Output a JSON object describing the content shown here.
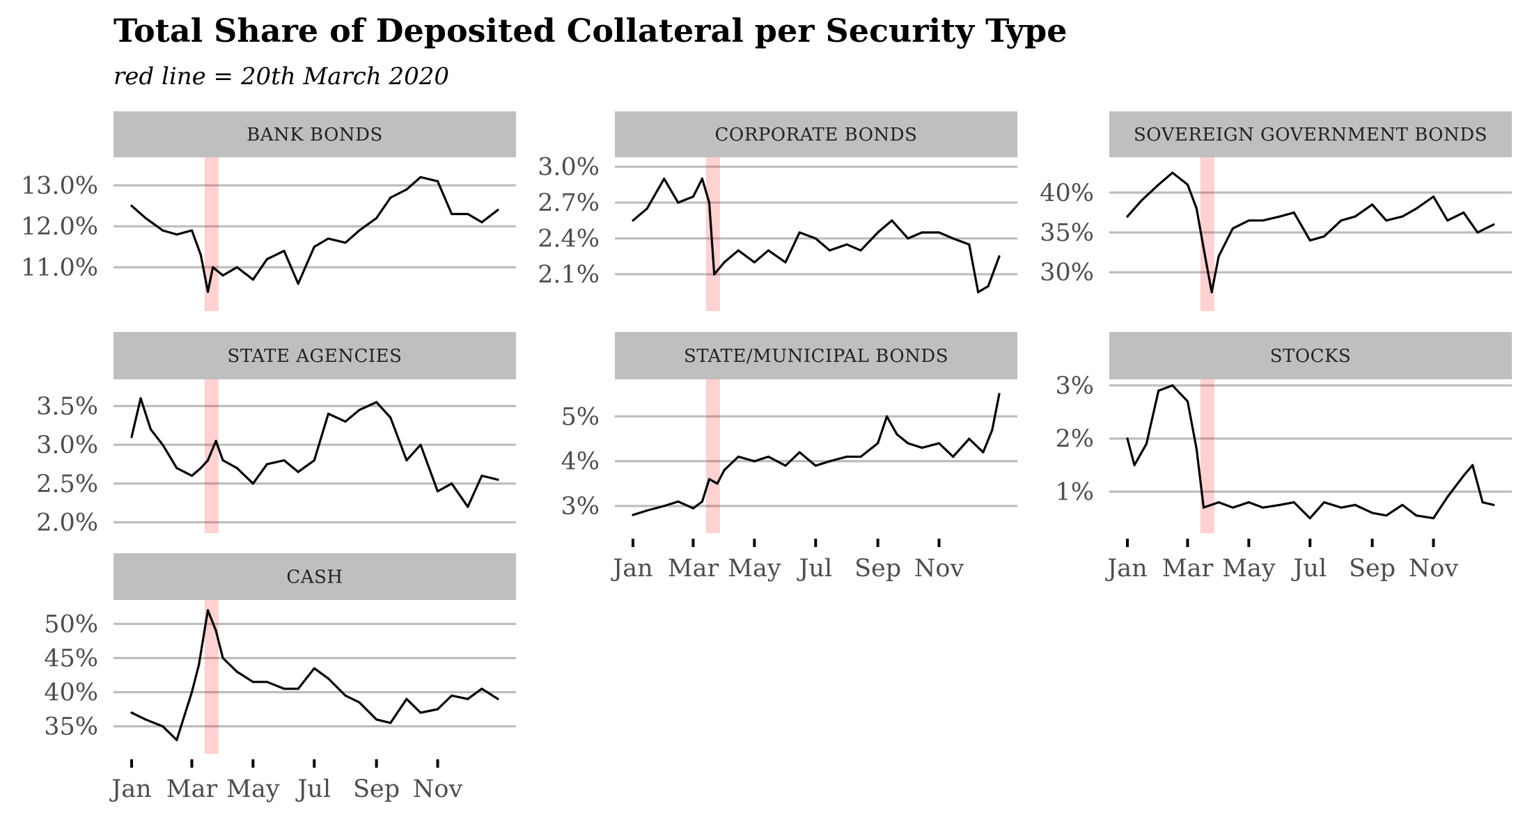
{
  "title": "Total Share of Deposited Collateral per Security Type",
  "subtitle": "red line = 20th March 2020",
  "event_date": "2020-03-20",
  "colors": {
    "series": "#000000",
    "event": "#ff0000",
    "strip": "#bfbfbf",
    "grid": "#bdbdbd"
  },
  "chart_data": [
    {
      "type": "line",
      "title": "BANK BONDS",
      "x_ticks": [
        "Jan",
        "Mar",
        "May",
        "Jul",
        "Sep",
        "Nov"
      ],
      "y_ticks": [
        "11.0%",
        "12.0%",
        "13.0%"
      ],
      "ylim": [
        10.1,
        13.6
      ],
      "grid": true,
      "x": [
        "2020-01-01",
        "2020-01-15",
        "2020-02-01",
        "2020-02-15",
        "2020-03-01",
        "2020-03-10",
        "2020-03-17",
        "2020-03-22",
        "2020-04-01",
        "2020-04-15",
        "2020-05-01",
        "2020-05-15",
        "2020-06-01",
        "2020-06-15",
        "2020-07-01",
        "2020-07-15",
        "2020-08-01",
        "2020-08-15",
        "2020-09-01",
        "2020-09-15",
        "2020-10-01",
        "2020-10-15",
        "2020-11-01",
        "2020-11-15",
        "2020-12-01",
        "2020-12-15",
        "2020-12-31"
      ],
      "values": [
        12.5,
        12.2,
        11.9,
        11.8,
        11.9,
        11.3,
        10.4,
        11.0,
        10.8,
        11.0,
        10.7,
        11.2,
        11.4,
        10.6,
        11.5,
        11.7,
        11.6,
        11.9,
        12.2,
        12.7,
        12.9,
        13.2,
        13.1,
        12.3,
        12.3,
        12.1,
        12.4
      ]
    },
    {
      "type": "line",
      "title": "CORPORATE BONDS",
      "x_ticks": [
        "Jan",
        "Mar",
        "May",
        "Jul",
        "Sep",
        "Nov"
      ],
      "y_ticks": [
        "2.1%",
        "2.4%",
        "2.7%",
        "3.0%"
      ],
      "ylim": [
        1.85,
        3.05
      ],
      "grid": true,
      "x": [
        "2020-01-01",
        "2020-01-15",
        "2020-02-01",
        "2020-02-15",
        "2020-03-01",
        "2020-03-10",
        "2020-03-17",
        "2020-03-22",
        "2020-04-01",
        "2020-04-15",
        "2020-05-01",
        "2020-05-15",
        "2020-06-01",
        "2020-06-15",
        "2020-07-01",
        "2020-07-15",
        "2020-08-01",
        "2020-08-15",
        "2020-09-01",
        "2020-09-15",
        "2020-10-01",
        "2020-10-15",
        "2020-11-01",
        "2020-11-15",
        "2020-12-01",
        "2020-12-10",
        "2020-12-20",
        "2020-12-31"
      ],
      "values": [
        2.55,
        2.65,
        2.9,
        2.7,
        2.75,
        2.9,
        2.7,
        2.1,
        2.2,
        2.3,
        2.2,
        2.3,
        2.2,
        2.45,
        2.4,
        2.3,
        2.35,
        2.3,
        2.45,
        2.55,
        2.4,
        2.45,
        2.45,
        2.4,
        2.35,
        1.95,
        2.0,
        2.25
      ]
    },
    {
      "type": "line",
      "title": "SOVEREIGN GOVERNMENT BONDS",
      "x_ticks": [
        "Jan",
        "Mar",
        "May",
        "Jul",
        "Sep",
        "Nov"
      ],
      "y_ticks": [
        "30%",
        "35%",
        "40%"
      ],
      "ylim": [
        26,
        44
      ],
      "grid": true,
      "x": [
        "2020-01-01",
        "2020-01-15",
        "2020-02-01",
        "2020-02-15",
        "2020-03-01",
        "2020-03-10",
        "2020-03-17",
        "2020-03-25",
        "2020-04-01",
        "2020-04-15",
        "2020-05-01",
        "2020-05-15",
        "2020-06-01",
        "2020-06-15",
        "2020-07-01",
        "2020-07-15",
        "2020-08-01",
        "2020-08-15",
        "2020-09-01",
        "2020-09-15",
        "2020-10-01",
        "2020-10-15",
        "2020-11-01",
        "2020-11-15",
        "2020-12-01",
        "2020-12-15",
        "2020-12-31"
      ],
      "values": [
        37,
        39,
        41,
        42.5,
        41,
        38,
        33,
        27.5,
        32,
        35.5,
        36.5,
        36.5,
        37,
        37.5,
        34,
        34.5,
        36.5,
        37,
        38.5,
        36.5,
        37,
        38,
        39.5,
        36.5,
        37.5,
        35,
        36
      ]
    },
    {
      "type": "line",
      "title": "STATE AGENCIES",
      "x_ticks": [
        "Jan",
        "Mar",
        "May",
        "Jul",
        "Sep",
        "Nov"
      ],
      "y_ticks": [
        "2.0%",
        "2.5%",
        "3.0%",
        "3.5%"
      ],
      "ylim": [
        1.95,
        3.8
      ],
      "grid": true,
      "x": [
        "2020-01-01",
        "2020-01-10",
        "2020-01-20",
        "2020-02-01",
        "2020-02-15",
        "2020-03-01",
        "2020-03-10",
        "2020-03-17",
        "2020-03-25",
        "2020-04-01",
        "2020-04-15",
        "2020-05-01",
        "2020-05-15",
        "2020-06-01",
        "2020-06-15",
        "2020-07-01",
        "2020-07-15",
        "2020-08-01",
        "2020-08-15",
        "2020-09-01",
        "2020-09-15",
        "2020-10-01",
        "2020-10-15",
        "2020-11-01",
        "2020-11-15",
        "2020-12-01",
        "2020-12-15",
        "2020-12-31"
      ],
      "values": [
        3.1,
        3.6,
        3.2,
        3.0,
        2.7,
        2.6,
        2.7,
        2.8,
        3.05,
        2.8,
        2.7,
        2.5,
        2.75,
        2.8,
        2.65,
        2.8,
        3.4,
        3.3,
        3.45,
        3.55,
        3.35,
        2.8,
        3.0,
        2.4,
        2.5,
        2.2,
        2.6,
        2.55
      ]
    },
    {
      "type": "line",
      "title": "STATE/MUNICIPAL BONDS",
      "x_ticks": [
        "Jan",
        "Mar",
        "May",
        "Jul",
        "Sep",
        "Nov"
      ],
      "y_ticks": [
        "3%",
        "4%",
        "5%"
      ],
      "ylim": [
        2.55,
        5.75
      ],
      "grid": true,
      "x": [
        "2020-01-01",
        "2020-01-15",
        "2020-02-01",
        "2020-02-15",
        "2020-03-01",
        "2020-03-10",
        "2020-03-17",
        "2020-03-25",
        "2020-04-01",
        "2020-04-15",
        "2020-05-01",
        "2020-05-15",
        "2020-06-01",
        "2020-06-15",
        "2020-07-01",
        "2020-07-15",
        "2020-08-01",
        "2020-08-15",
        "2020-09-01",
        "2020-09-10",
        "2020-09-20",
        "2020-10-01",
        "2020-10-15",
        "2020-11-01",
        "2020-11-15",
        "2020-12-01",
        "2020-12-15",
        "2020-12-24",
        "2020-12-31"
      ],
      "values": [
        2.8,
        2.9,
        3.0,
        3.1,
        2.95,
        3.1,
        3.6,
        3.5,
        3.8,
        4.1,
        4.0,
        4.1,
        3.9,
        4.2,
        3.9,
        4.0,
        4.1,
        4.1,
        4.4,
        5.0,
        4.6,
        4.4,
        4.3,
        4.4,
        4.1,
        4.5,
        4.2,
        4.7,
        5.5
      ]
    },
    {
      "type": "line",
      "title": "STOCKS",
      "x_ticks": [
        "Jan",
        "Mar",
        "May",
        "Jul",
        "Sep",
        "Nov"
      ],
      "y_ticks": [
        "1%",
        "2%",
        "3%"
      ],
      "ylim": [
        0.35,
        3.05
      ],
      "grid": true,
      "x": [
        "2020-01-01",
        "2020-01-08",
        "2020-01-20",
        "2020-02-01",
        "2020-02-15",
        "2020-03-01",
        "2020-03-10",
        "2020-03-17",
        "2020-04-01",
        "2020-04-15",
        "2020-05-01",
        "2020-05-15",
        "2020-06-01",
        "2020-06-15",
        "2020-07-01",
        "2020-07-15",
        "2020-08-01",
        "2020-08-15",
        "2020-09-01",
        "2020-09-15",
        "2020-10-01",
        "2020-10-15",
        "2020-11-01",
        "2020-11-15",
        "2020-12-01",
        "2020-12-10",
        "2020-12-20",
        "2020-12-31"
      ],
      "values": [
        2.0,
        1.5,
        1.9,
        2.9,
        3.0,
        2.7,
        1.8,
        0.7,
        0.8,
        0.7,
        0.8,
        0.7,
        0.75,
        0.8,
        0.5,
        0.8,
        0.7,
        0.75,
        0.6,
        0.55,
        0.75,
        0.55,
        0.5,
        0.9,
        1.3,
        1.5,
        0.8,
        0.75
      ]
    },
    {
      "type": "line",
      "title": "CASH",
      "x_ticks": [
        "Jan",
        "Mar",
        "May",
        "Jul",
        "Sep",
        "Nov"
      ],
      "y_ticks": [
        "35%",
        "40%",
        "45%",
        "50%"
      ],
      "ylim": [
        32,
        53
      ],
      "grid": true,
      "x": [
        "2020-01-01",
        "2020-01-15",
        "2020-02-01",
        "2020-02-15",
        "2020-03-01",
        "2020-03-08",
        "2020-03-17",
        "2020-03-25",
        "2020-04-01",
        "2020-04-15",
        "2020-05-01",
        "2020-05-15",
        "2020-06-01",
        "2020-06-15",
        "2020-07-01",
        "2020-07-15",
        "2020-08-01",
        "2020-08-15",
        "2020-09-01",
        "2020-09-15",
        "2020-10-01",
        "2020-10-15",
        "2020-11-01",
        "2020-11-15",
        "2020-12-01",
        "2020-12-15",
        "2020-12-31"
      ],
      "values": [
        37,
        36,
        35,
        33,
        40,
        44,
        52,
        49,
        45,
        43,
        41.5,
        41.5,
        40.5,
        40.5,
        43.5,
        42,
        39.5,
        38.5,
        36,
        35.5,
        39,
        37,
        37.5,
        39.5,
        39,
        40.5,
        39
      ]
    }
  ]
}
